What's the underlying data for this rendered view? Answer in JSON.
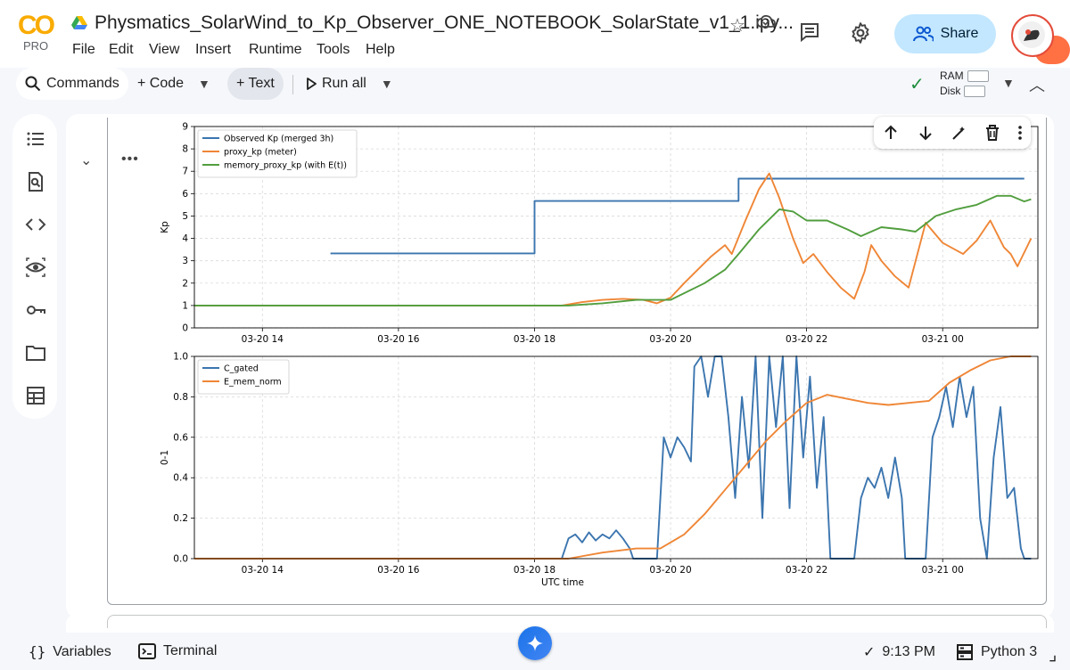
{
  "app": {
    "logo_text": "CO",
    "plan_label": "PRO",
    "notebook_title": "Physmatics_SolarWind_to_Kp_Observer_ONE_NOTEBOOK_SolarState_v1_1.ipy..."
  },
  "menu": [
    {
      "label": "File"
    },
    {
      "label": "Edit"
    },
    {
      "label": "View"
    },
    {
      "label": "Insert"
    },
    {
      "label": "Runtime"
    },
    {
      "label": "Tools"
    },
    {
      "label": "Help"
    }
  ],
  "header": {
    "share_label": "Share"
  },
  "toolbar": {
    "commands_label": "Commands",
    "code_label": "+ Code",
    "text_label": "+ Text",
    "run_all_label": "Run all",
    "ram_label": "RAM",
    "disk_label": "Disk"
  },
  "rail_icons": [
    "table-of-contents-icon",
    "find-icon",
    "code-snippets-icon",
    "variables-inspector-icon",
    "secrets-key-icon",
    "files-folder-icon",
    "data-table-icon"
  ],
  "cell": {
    "menu_label": "•••"
  },
  "statusbar": {
    "variables_label": "Variables",
    "terminal_label": "Terminal",
    "time_label": "9:13 PM",
    "runtime_label": "Python 3"
  },
  "colors": {
    "accent": "#c2e7ff",
    "series_blue": "#3b75af",
    "series_orange": "#ef8636",
    "series_green": "#519e3e"
  },
  "chart_data": [
    {
      "type": "line",
      "title": "",
      "xlabel": "",
      "ylabel": "Kp",
      "ylim": [
        0,
        9
      ],
      "yticks": [
        "0",
        "1",
        "2",
        "3",
        "4",
        "5",
        "6",
        "7",
        "8",
        "9"
      ],
      "xticks": [
        "03-20 14",
        "03-20 16",
        "03-20 18",
        "03-20 20",
        "03-20 22",
        "03-21 00"
      ],
      "grid": true,
      "legend_position": "top-left",
      "series": [
        {
          "name": "Observed Kp (merged 3h)",
          "color": "#3b75af",
          "step": true,
          "points": [
            [
              15.0,
              3.33
            ],
            [
              18.0,
              3.33
            ],
            [
              18.0,
              5.67
            ],
            [
              21.0,
              5.67
            ],
            [
              21.0,
              6.67
            ],
            [
              25.2,
              6.67
            ]
          ]
        },
        {
          "name": "proxy_kp (meter)",
          "color": "#ef8636",
          "points": [
            [
              13.0,
              1.0
            ],
            [
              18.4,
              1.0
            ],
            [
              18.7,
              1.15
            ],
            [
              19.0,
              1.25
            ],
            [
              19.3,
              1.3
            ],
            [
              19.6,
              1.25
            ],
            [
              19.8,
              1.1
            ],
            [
              20.0,
              1.35
            ],
            [
              20.2,
              2.0
            ],
            [
              20.4,
              2.6
            ],
            [
              20.6,
              3.2
            ],
            [
              20.8,
              3.7
            ],
            [
              20.9,
              3.3
            ],
            [
              21.1,
              4.8
            ],
            [
              21.3,
              6.2
            ],
            [
              21.45,
              6.9
            ],
            [
              21.6,
              5.8
            ],
            [
              21.8,
              4.0
            ],
            [
              21.95,
              2.9
            ],
            [
              22.1,
              3.3
            ],
            [
              22.3,
              2.5
            ],
            [
              22.5,
              1.8
            ],
            [
              22.7,
              1.3
            ],
            [
              22.85,
              2.5
            ],
            [
              22.95,
              3.7
            ],
            [
              23.1,
              3.0
            ],
            [
              23.3,
              2.3
            ],
            [
              23.5,
              1.8
            ],
            [
              23.75,
              4.7
            ],
            [
              24.0,
              3.8
            ],
            [
              24.3,
              3.3
            ],
            [
              24.5,
              3.9
            ],
            [
              24.7,
              4.8
            ],
            [
              24.9,
              3.6
            ],
            [
              25.0,
              3.3
            ],
            [
              25.1,
              2.75
            ],
            [
              25.3,
              4.0
            ]
          ]
        },
        {
          "name": "memory_proxy_kp (with E(t))",
          "color": "#519e3e",
          "points": [
            [
              13.0,
              1.0
            ],
            [
              18.5,
              1.0
            ],
            [
              19.0,
              1.1
            ],
            [
              19.5,
              1.25
            ],
            [
              20.0,
              1.25
            ],
            [
              20.5,
              2.0
            ],
            [
              20.8,
              2.6
            ],
            [
              21.0,
              3.3
            ],
            [
              21.3,
              4.4
            ],
            [
              21.6,
              5.3
            ],
            [
              21.8,
              5.2
            ],
            [
              22.0,
              4.8
            ],
            [
              22.3,
              4.8
            ],
            [
              22.6,
              4.4
            ],
            [
              22.8,
              4.1
            ],
            [
              23.1,
              4.5
            ],
            [
              23.4,
              4.4
            ],
            [
              23.6,
              4.3
            ],
            [
              23.9,
              5.0
            ],
            [
              24.2,
              5.3
            ],
            [
              24.5,
              5.5
            ],
            [
              24.8,
              5.9
            ],
            [
              25.0,
              5.9
            ],
            [
              25.2,
              5.65
            ],
            [
              25.3,
              5.75
            ]
          ]
        }
      ]
    },
    {
      "type": "line",
      "title": "",
      "xlabel": "UTC time",
      "ylabel": "0-1",
      "ylim": [
        0,
        1.0
      ],
      "yticks": [
        "0.0",
        "0.2",
        "0.4",
        "0.6",
        "0.8",
        "1.0"
      ],
      "xticks": [
        "03-20 14",
        "03-20 16",
        "03-20 18",
        "03-20 20",
        "03-20 22",
        "03-21 00"
      ],
      "grid": true,
      "legend_position": "top-left",
      "series": [
        {
          "name": "C_gated",
          "color": "#3b75af",
          "points": [
            [
              13.0,
              0.0
            ],
            [
              18.4,
              0.0
            ],
            [
              18.5,
              0.1
            ],
            [
              18.6,
              0.12
            ],
            [
              18.7,
              0.08
            ],
            [
              18.8,
              0.13
            ],
            [
              18.9,
              0.09
            ],
            [
              19.0,
              0.12
            ],
            [
              19.1,
              0.1
            ],
            [
              19.2,
              0.14
            ],
            [
              19.3,
              0.1
            ],
            [
              19.4,
              0.05
            ],
            [
              19.45,
              0.0
            ],
            [
              19.8,
              0.0
            ],
            [
              19.9,
              0.6
            ],
            [
              20.0,
              0.5
            ],
            [
              20.1,
              0.6
            ],
            [
              20.2,
              0.55
            ],
            [
              20.3,
              0.48
            ],
            [
              20.35,
              0.95
            ],
            [
              20.45,
              1.0
            ],
            [
              20.55,
              0.8
            ],
            [
              20.65,
              1.0
            ],
            [
              20.75,
              1.0
            ],
            [
              20.85,
              0.7
            ],
            [
              20.95,
              0.3
            ],
            [
              21.05,
              0.8
            ],
            [
              21.15,
              0.45
            ],
            [
              21.25,
              1.0
            ],
            [
              21.35,
              0.2
            ],
            [
              21.45,
              1.0
            ],
            [
              21.55,
              0.65
            ],
            [
              21.65,
              1.0
            ],
            [
              21.75,
              0.25
            ],
            [
              21.85,
              1.0
            ],
            [
              21.95,
              0.5
            ],
            [
              22.05,
              0.9
            ],
            [
              22.15,
              0.35
            ],
            [
              22.25,
              0.7
            ],
            [
              22.35,
              0.0
            ],
            [
              22.7,
              0.0
            ],
            [
              22.8,
              0.3
            ],
            [
              22.9,
              0.4
            ],
            [
              23.0,
              0.35
            ],
            [
              23.1,
              0.45
            ],
            [
              23.2,
              0.3
            ],
            [
              23.3,
              0.5
            ],
            [
              23.4,
              0.3
            ],
            [
              23.45,
              0.0
            ],
            [
              23.75,
              0.0
            ],
            [
              23.85,
              0.6
            ],
            [
              23.95,
              0.7
            ],
            [
              24.05,
              0.85
            ],
            [
              24.15,
              0.65
            ],
            [
              24.25,
              0.9
            ],
            [
              24.35,
              0.7
            ],
            [
              24.45,
              0.85
            ],
            [
              24.55,
              0.2
            ],
            [
              24.65,
              0.0
            ],
            [
              24.75,
              0.5
            ],
            [
              24.85,
              0.75
            ],
            [
              24.95,
              0.3
            ],
            [
              25.05,
              0.35
            ],
            [
              25.15,
              0.05
            ],
            [
              25.2,
              0.0
            ],
            [
              25.3,
              0.0
            ]
          ]
        },
        {
          "name": "E_mem_norm",
          "color": "#ef8636",
          "points": [
            [
              13.0,
              0.0
            ],
            [
              18.5,
              0.0
            ],
            [
              19.0,
              0.03
            ],
            [
              19.5,
              0.05
            ],
            [
              19.85,
              0.05
            ],
            [
              20.2,
              0.12
            ],
            [
              20.5,
              0.22
            ],
            [
              20.8,
              0.34
            ],
            [
              21.1,
              0.46
            ],
            [
              21.4,
              0.58
            ],
            [
              21.7,
              0.68
            ],
            [
              22.0,
              0.77
            ],
            [
              22.3,
              0.81
            ],
            [
              22.6,
              0.79
            ],
            [
              22.9,
              0.77
            ],
            [
              23.2,
              0.76
            ],
            [
              23.5,
              0.77
            ],
            [
              23.8,
              0.78
            ],
            [
              24.1,
              0.87
            ],
            [
              24.4,
              0.93
            ],
            [
              24.7,
              0.98
            ],
            [
              25.0,
              1.0
            ],
            [
              25.3,
              1.0
            ]
          ]
        }
      ]
    }
  ]
}
